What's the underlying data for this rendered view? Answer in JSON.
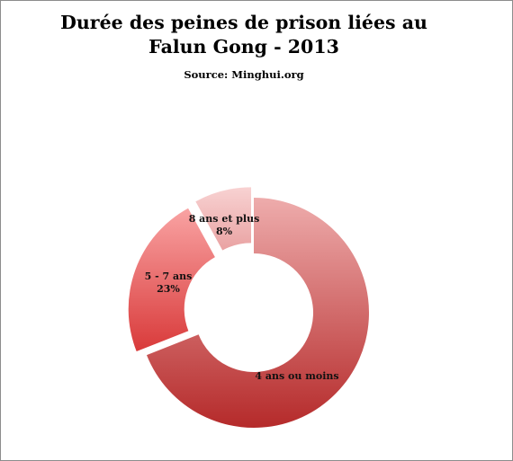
{
  "chart_data": {
    "type": "pie",
    "variant": "donut",
    "title_lines": [
      "Durée des peines de prison liées au",
      "Falun Gong - 2013"
    ],
    "subtitle": "Source: Minghui.org",
    "legend": "none",
    "slices": [
      {
        "label": "4 ans ou moins",
        "value": 69,
        "value_label": "",
        "color_light": "#eeacac",
        "color_dark": "#b52a2a",
        "exploded": false
      },
      {
        "label": "5 - 7 ans",
        "value": 23,
        "value_label": "23%",
        "color_light": "#f9a3a3",
        "color_dark": "#d93a3a",
        "exploded": true
      },
      {
        "label": "8 ans et plus",
        "value": 8,
        "value_label": "8%",
        "color_light": "#f8d2d2",
        "color_dark": "#e9a2a2",
        "exploded": true
      }
    ]
  }
}
